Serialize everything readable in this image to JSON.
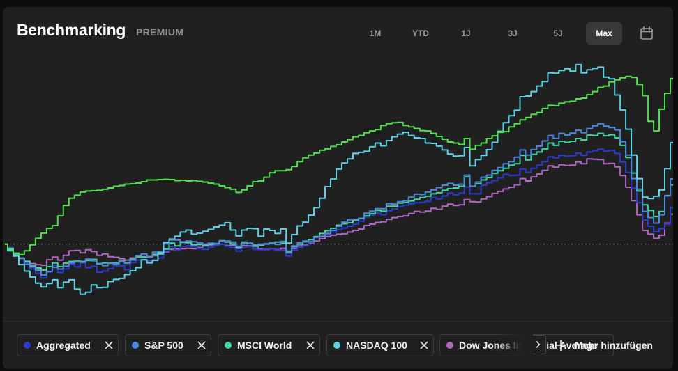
{
  "header": {
    "title": "Benchmarking",
    "badge": "PREMIUM",
    "ranges": [
      "1M",
      "YTD",
      "1J",
      "3J",
      "5J",
      "Max"
    ],
    "active_range": "Max",
    "calendar_icon": "calendar-icon"
  },
  "chart_data": {
    "type": "line",
    "title": "",
    "xlabel": "",
    "ylabel": "",
    "grid": false,
    "legend": "bottom",
    "baseline": 0,
    "ylim": [
      -20,
      55
    ],
    "x": [
      0,
      1,
      2,
      3,
      4,
      5,
      6,
      7,
      8,
      9,
      10,
      11,
      12,
      13,
      14,
      15,
      16,
      17,
      18,
      19,
      20,
      21,
      22,
      23,
      24,
      25,
      26,
      27,
      28,
      29,
      30,
      31,
      32,
      33,
      34,
      35,
      36,
      37,
      38,
      39,
      40,
      41,
      42,
      43,
      44,
      45,
      46,
      47,
      48,
      49,
      50,
      51,
      52,
      53,
      54,
      55,
      56,
      57,
      58,
      59,
      60,
      61,
      62,
      63,
      64,
      65,
      66,
      67,
      68,
      69,
      70,
      71,
      72,
      73,
      74,
      75,
      76,
      77,
      78,
      79,
      80,
      81,
      82,
      83,
      84,
      85,
      86,
      87,
      88,
      89,
      90,
      91,
      92,
      93,
      94,
      95,
      96,
      97,
      98,
      99,
      100,
      101,
      102,
      103,
      104,
      105,
      106,
      107,
      108,
      109,
      110,
      111,
      112,
      113,
      114,
      115,
      116,
      117,
      118,
      119,
      120
    ],
    "series": [
      {
        "name": "Aggregated",
        "color": "#2b3bd0",
        "values": [
          0.0,
          -1.0,
          -2.5,
          -4.1,
          -5.4,
          -7.2,
          -8.4,
          -9.8,
          -8.1,
          -6.2,
          -8.2,
          -7.2,
          -5.8,
          -6.6,
          -5.4,
          -6.8,
          -6.4,
          -8.1,
          -7.8,
          -7.1,
          -6.2,
          -6.2,
          -7.4,
          -5.3,
          -4.6,
          -4.6,
          -4.9,
          -4.5,
          -4.0,
          -2.0,
          -0.7,
          -1.7,
          -0.7,
          -0.5,
          -0.7,
          -1.3,
          -1.5,
          -0.8,
          -0.3,
          0.0,
          -0.6,
          -1.0,
          -2.0,
          -0.9,
          -0.7,
          -1.5,
          -1.6,
          -1.4,
          -1.3,
          -1.7,
          -1.7,
          -3.4,
          -1.7,
          -1.0,
          -0.5,
          0.5,
          2.0,
          2.2,
          2.8,
          3.5,
          4.2,
          4.7,
          5.2,
          5.8,
          6.7,
          7.9,
          8.4,
          9.0,
          8.5,
          9.7,
          10.2,
          10.9,
          11.3,
          11.7,
          12.0,
          12.1,
          12.4,
          13.5,
          13.1,
          14.0,
          14.8,
          14.3,
          14.8,
          16.6,
          14.6,
          14.6,
          17.1,
          17.8,
          18.4,
          19.2,
          20.2,
          19.9,
          20.0,
          21.8,
          20.8,
          22.0,
          22.9,
          23.9,
          25.3,
          25.0,
          25.7,
          25.5,
          25.6,
          26.4,
          25.7,
          26.7,
          27.1,
          27.5,
          26.9,
          27.2,
          26.3,
          23.8,
          20.7,
          16.2,
          12.0,
          7.0,
          5.2,
          3.6,
          4.5,
          5.8,
          10.6
        ]
      },
      {
        "name": "S&P 500",
        "color": "#4f86e0",
        "values": [
          0.0,
          -1.2,
          -2.6,
          -4.1,
          -5.8,
          -6.6,
          -7.5,
          -8.9,
          -7.9,
          -6.7,
          -7.2,
          -6.4,
          -5.4,
          -5.1,
          -5.2,
          -4.3,
          -4.8,
          -5.6,
          -6.2,
          -5.4,
          -5.7,
          -5.0,
          -5.5,
          -4.6,
          -3.3,
          -2.8,
          -3.6,
          -2.3,
          -2.2,
          0.1,
          1.2,
          1.2,
          0.7,
          0.9,
          0.7,
          0.4,
          0.0,
          0.3,
          0.2,
          0.9,
          0.9,
          0.6,
          -0.6,
          0.3,
          0.3,
          -0.7,
          0.0,
          0.0,
          0.4,
          -0.1,
          0.8,
          -2.5,
          -0.5,
          0.4,
          0.9,
          0.7,
          2.0,
          2.3,
          3.1,
          4.0,
          5.2,
          6.4,
          7.1,
          7.2,
          7.4,
          9.0,
          9.6,
          10.3,
          10.3,
          11.7,
          11.6,
          12.3,
          12.6,
          13.6,
          14.5,
          14.4,
          15.1,
          15.7,
          16.4,
          17.1,
          17.6,
          17.1,
          17.4,
          20.0,
          16.8,
          18.0,
          19.4,
          20.0,
          21.4,
          22.2,
          23.3,
          23.9,
          25.2,
          27.3,
          25.8,
          27.4,
          28.4,
          29.9,
          31.5,
          30.6,
          32.1,
          31.6,
          32.2,
          33.0,
          32.3,
          33.5,
          34.3,
          34.9,
          34.2,
          33.8,
          33.1,
          29.7,
          25.8,
          19.0,
          15.9,
          9.5,
          7.7,
          6.1,
          8.5,
          14.0,
          18.9
        ]
      },
      {
        "name": "MSCI World",
        "color": "#3ed6a0",
        "values": [
          0.0,
          -1.6,
          -3.0,
          -4.1,
          -5.0,
          -6.3,
          -6.9,
          -7.5,
          -6.5,
          -5.4,
          -6.5,
          -5.5,
          -5.0,
          -4.9,
          -5.0,
          -4.7,
          -4.4,
          -5.7,
          -5.4,
          -5.5,
          -5.3,
          -4.9,
          -5.3,
          -4.4,
          -3.7,
          -3.7,
          -3.6,
          -2.9,
          -2.8,
          -1.4,
          0.3,
          -0.5,
          0.5,
          0.4,
          -0.2,
          -0.1,
          -0.3,
          0.0,
          0.1,
          1.0,
          0.6,
          0.1,
          -0.9,
          0.6,
          0.2,
          -0.3,
          -0.3,
          0.1,
          0.3,
          0.6,
          0.3,
          -2.0,
          -0.7,
          0.0,
          0.7,
          1.3,
          2.2,
          3.1,
          3.9,
          4.6,
          5.5,
          5.9,
          6.2,
          7.0,
          7.5,
          8.2,
          8.9,
          9.8,
          9.6,
          11.0,
          11.0,
          11.9,
          12.1,
          12.5,
          13.0,
          13.5,
          13.9,
          14.6,
          14.9,
          15.6,
          16.1,
          16.3,
          16.8,
          19.5,
          16.8,
          17.5,
          18.6,
          19.3,
          20.5,
          21.3,
          22.0,
          22.9,
          23.3,
          25.7,
          24.4,
          26.0,
          26.7,
          27.6,
          29.3,
          28.6,
          29.8,
          29.5,
          29.8,
          30.6,
          30.2,
          31.6,
          31.5,
          32.1,
          31.4,
          31.7,
          30.8,
          28.6,
          25.1,
          20.6,
          15.4,
          11.4,
          9.8,
          8.0,
          9.5,
          14.1,
          17.2
        ]
      },
      {
        "name": "NASDAQ 100",
        "color": "#5cd2e6",
        "values": [
          0.0,
          -1.9,
          -3.4,
          -5.9,
          -7.8,
          -9.5,
          -11.3,
          -12.4,
          -11.4,
          -10.3,
          -12.6,
          -11.0,
          -10.3,
          -13.0,
          -14.5,
          -13.9,
          -11.8,
          -12.6,
          -12.5,
          -10.8,
          -10.2,
          -9.9,
          -8.8,
          -7.7,
          -6.8,
          -4.5,
          -5.4,
          -4.7,
          -2.5,
          0.5,
          1.5,
          2.3,
          3.5,
          4.1,
          2.9,
          3.2,
          3.7,
          4.3,
          5.0,
          5.5,
          6.2,
          4.1,
          2.4,
          4.1,
          4.6,
          4.5,
          2.3,
          4.4,
          4.0,
          3.1,
          4.4,
          0.3,
          2.8,
          5.3,
          6.4,
          8.4,
          10.6,
          13.3,
          16.7,
          18.9,
          21.8,
          23.5,
          24.7,
          26.3,
          26.6,
          26.9,
          28.2,
          29.3,
          28.5,
          30.0,
          31.1,
          31.9,
          32.4,
          31.5,
          30.8,
          30.6,
          29.3,
          29.2,
          28.4,
          27.3,
          26.1,
          25.5,
          25.6,
          28.0,
          22.7,
          24.5,
          25.7,
          27.4,
          29.5,
          32.7,
          35.2,
          37.2,
          38.8,
          42.7,
          42.9,
          44.2,
          45.8,
          47.1,
          49.6,
          49.5,
          50.3,
          50.8,
          50.1,
          52.0,
          49.6,
          50.5,
          50.9,
          51.3,
          48.4,
          47.9,
          43.2,
          38.9,
          33.3,
          25.8,
          19.0,
          13.6,
          13.2,
          13.9,
          15.7,
          21.9,
          29.4
        ]
      },
      {
        "name": "Dow Jones Industrial Average",
        "color": "#b069c2",
        "values": [
          0.0,
          -1.4,
          -2.8,
          -4.0,
          -4.9,
          -5.6,
          -5.9,
          -6.1,
          -4.5,
          -3.7,
          -4.6,
          -3.2,
          -1.9,
          -1.8,
          -2.5,
          -1.6,
          -2.1,
          -3.2,
          -2.8,
          -3.6,
          -3.8,
          -4.2,
          -4.6,
          -4.0,
          -3.6,
          -3.6,
          -3.7,
          -3.3,
          -2.9,
          -2.2,
          -1.5,
          -1.4,
          -1.3,
          -1.2,
          -1.3,
          -1.0,
          -0.5,
          -0.2,
          -0.3,
          0.0,
          -0.4,
          -0.3,
          -1.2,
          -0.4,
          -0.5,
          -0.6,
          -1.4,
          -1.5,
          -1.3,
          -1.6,
          -1.2,
          -2.4,
          -1.2,
          -0.5,
          -0.3,
          0.3,
          0.9,
          1.6,
          2.2,
          2.6,
          2.9,
          3.0,
          3.5,
          4.0,
          4.4,
          5.4,
          5.8,
          6.3,
          6.5,
          7.2,
          7.7,
          8.0,
          8.2,
          8.9,
          9.5,
          9.3,
          9.6,
          10.4,
          10.1,
          11.0,
          11.6,
          11.2,
          11.4,
          12.9,
          12.3,
          12.2,
          13.1,
          13.8,
          14.7,
          15.3,
          16.0,
          16.5,
          17.2,
          19.0,
          18.3,
          19.5,
          20.3,
          21.4,
          22.7,
          22.3,
          23.0,
          22.8,
          22.9,
          23.8,
          23.3,
          24.7,
          24.6,
          24.5,
          23.3,
          23.4,
          22.4,
          19.9,
          16.5,
          12.6,
          8.5,
          4.0,
          2.9,
          1.7,
          2.6,
          6.1,
          8.7
        ]
      },
      {
        "name": "",
        "color": "#4fe04d",
        "values": [
          0.0,
          -1.4,
          -2.6,
          -3.0,
          -1.9,
          -0.2,
          1.7,
          3.2,
          4.6,
          5.4,
          8.2,
          11.2,
          13.3,
          14.2,
          15.1,
          15.4,
          15.5,
          15.6,
          15.9,
          16.3,
          16.8,
          17.0,
          17.4,
          17.5,
          17.7,
          18.1,
          18.6,
          18.6,
          18.7,
          18.8,
          18.7,
          18.4,
          18.5,
          18.3,
          18.4,
          18.2,
          18.0,
          17.7,
          17.4,
          16.9,
          16.4,
          15.9,
          15.0,
          15.7,
          16.9,
          18.1,
          18.3,
          19.4,
          20.7,
          21.3,
          21.3,
          21.6,
          22.5,
          23.9,
          25.0,
          25.8,
          26.4,
          27.2,
          27.6,
          28.3,
          28.8,
          29.6,
          30.3,
          31.1,
          31.5,
          32.3,
          32.8,
          33.2,
          34.4,
          34.9,
          35.2,
          35.3,
          34.4,
          34.0,
          33.5,
          32.9,
          32.8,
          32.1,
          31.2,
          30.4,
          29.6,
          29.3,
          28.9,
          30.6,
          27.5,
          28.6,
          29.3,
          30.6,
          31.4,
          32.4,
          32.6,
          34.0,
          34.9,
          36.0,
          36.7,
          37.6,
          38.1,
          39.3,
          40.2,
          40.1,
          40.8,
          41.2,
          41.4,
          42.1,
          42.3,
          43.3,
          44.2,
          45.4,
          45.8,
          47.0,
          47.6,
          48.2,
          48.6,
          48.3,
          46.3,
          43.0,
          35.6,
          32.8,
          39.1,
          43.7,
          48.0
        ]
      }
    ]
  },
  "legend_chips": [
    {
      "label": "Aggregated",
      "color": "#2b3bd0",
      "remove_icon": "close-icon"
    },
    {
      "label": "S&P 500",
      "color": "#4f86e0",
      "remove_icon": "close-icon"
    },
    {
      "label": "MSCI World",
      "color": "#3ed6a0",
      "remove_icon": "close-icon"
    },
    {
      "label": "NASDAQ 100",
      "color": "#5cd2e6",
      "remove_icon": "close-icon"
    },
    {
      "label": "Dow Jones Industrial Average",
      "color": "#b069c2",
      "remove_icon": "close-icon"
    }
  ],
  "more_arrow_icon": "chevron-right-icon",
  "add_more_label": "Mehr hinzufügen"
}
